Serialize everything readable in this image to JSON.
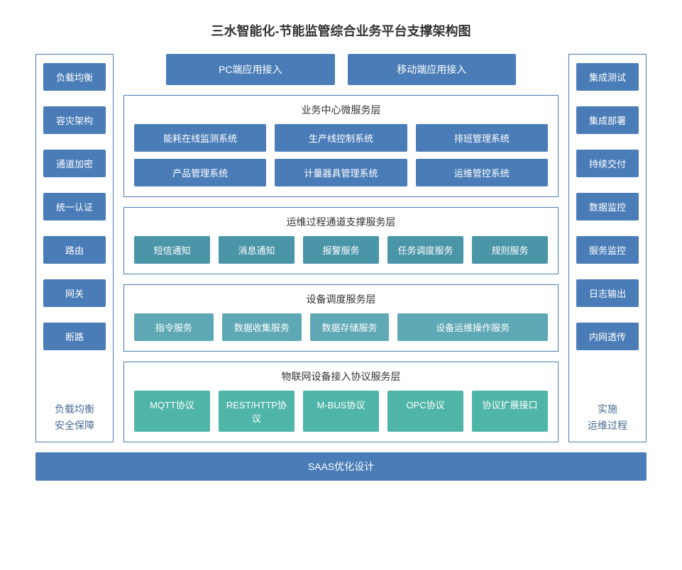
{
  "title": "三水智能化-节能监管综合业务平台支撑架构图",
  "colors": {
    "border": "#4a7db8",
    "blue": "#4a7db8",
    "teal1": "#4a95a8",
    "teal2": "#5fa8b5",
    "green": "#4fb5a8",
    "text_dark": "#333333",
    "text_side": "#4a6b95",
    "background": "#ffffff"
  },
  "left": {
    "items": [
      "负载均衡",
      "容灾架构",
      "通道加密",
      "统一认证",
      "路由",
      "网关",
      "断路"
    ],
    "label_line1": "负载均衡",
    "label_line2": "安全保障"
  },
  "right": {
    "items": [
      "集成测试",
      "集成部署",
      "持续交付",
      "数据监控",
      "服务监控",
      "日志输出",
      "内网透传"
    ],
    "label_line1": "实施",
    "label_line2": "运维过程"
  },
  "top": {
    "a": "PC端应用接入",
    "b": "移动端应用接入"
  },
  "layer1": {
    "title": "业务中心微服务层",
    "row1": [
      "能耗在线监测系统",
      "生产线控制系统",
      "排班管理系统"
    ],
    "row2": [
      "产品管理系统",
      "计量器具管理系统",
      "运维管控系统"
    ]
  },
  "layer2": {
    "title": "运维过程通道支撑服务层",
    "row": [
      "短信通知",
      "消息通知",
      "报警服务",
      "任务调度服务",
      "规则服务"
    ]
  },
  "layer3": {
    "title": "设备调度服务层",
    "row": [
      "指令服务",
      "数据收集服务",
      "数据存储服务",
      "设备运维操作服务"
    ]
  },
  "layer4": {
    "title": "物联网设备接入协议服务层",
    "row": [
      "MQTT协议",
      "REST/HTTP协议",
      "M-BUS协议",
      "OPC协议",
      "协议扩展接口"
    ]
  },
  "bottom": "SAAS优化设计"
}
